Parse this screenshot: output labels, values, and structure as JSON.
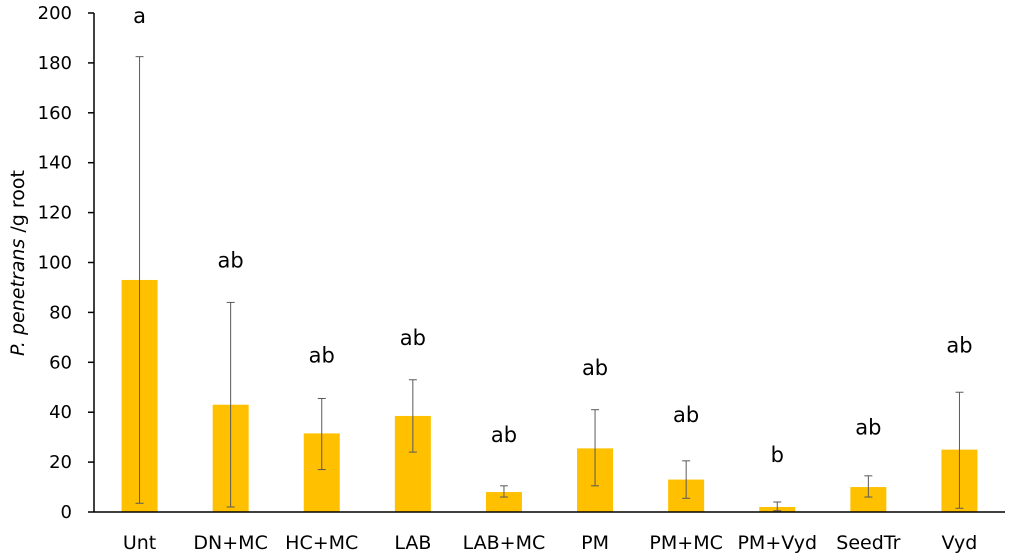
{
  "chart_data": {
    "type": "bar",
    "ylabel_italic": "P. penetrans",
    "ylabel_rest": " /g root",
    "xlabel": "",
    "ylim": [
      0,
      200
    ],
    "yticks": [
      "0",
      "20",
      "40",
      "60",
      "80",
      "100",
      "120",
      "140",
      "160",
      "180",
      "200"
    ],
    "grid": false,
    "categories": [
      "Unt",
      "DN+MC",
      "HC+MC",
      "LAB",
      "LAB+MC",
      "PM",
      "PM+MC",
      "PM+Vyd",
      "SeedTr",
      "Vyd"
    ],
    "values": [
      93,
      43,
      31.5,
      38.5,
      8,
      25.5,
      13,
      2,
      10,
      25
    ],
    "error_low": [
      3.5,
      2,
      17,
      24,
      6,
      10.5,
      5.5,
      0.5,
      6,
      1.5
    ],
    "error_high": [
      182.5,
      84,
      45.5,
      53,
      10.5,
      41,
      20.5,
      4,
      14.5,
      48
    ],
    "significance": [
      "a",
      "ab",
      "ab",
      "ab",
      "ab",
      "ab",
      "ab",
      "b",
      "ab",
      "ab"
    ],
    "significance_y": [
      196,
      98,
      60,
      67,
      28,
      55,
      36,
      20,
      31,
      64
    ],
    "bar_color": "#FFC000",
    "error_color": "#595959",
    "axis_color": "#000000"
  }
}
